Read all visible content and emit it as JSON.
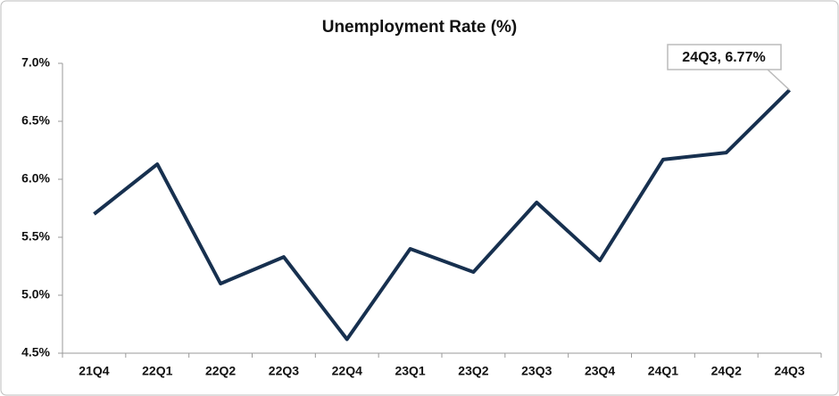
{
  "chart_data": {
    "type": "line",
    "title": "Unemployment Rate (%)",
    "categories": [
      "21Q4",
      "22Q1",
      "22Q2",
      "22Q3",
      "22Q4",
      "23Q1",
      "23Q2",
      "23Q3",
      "23Q4",
      "24Q1",
      "24Q2",
      "24Q3"
    ],
    "values": [
      5.7,
      6.13,
      5.1,
      5.33,
      4.62,
      5.4,
      5.2,
      5.8,
      5.3,
      6.17,
      6.23,
      6.77
    ],
    "color": "#17304f",
    "annotation": "24Q3, 6.77%",
    "ylim": [
      4.5,
      7.0
    ],
    "yticks": [
      {
        "value": 4.5,
        "label": "4.5%"
      },
      {
        "value": 5.0,
        "label": "5.0%"
      },
      {
        "value": 5.5,
        "label": "5.5%"
      },
      {
        "value": 6.0,
        "label": "6.0%"
      },
      {
        "value": 6.5,
        "label": "6.5%"
      },
      {
        "value": 7.0,
        "label": "7.0%"
      }
    ],
    "grid": false
  }
}
